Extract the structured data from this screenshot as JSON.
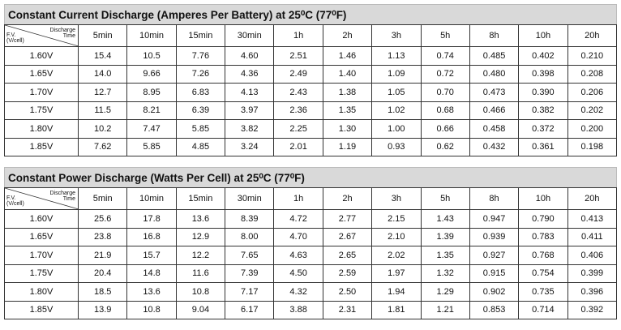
{
  "tables": [
    {
      "title": "Constant Current Discharge (Amperes Per Battery) at 25⁰C (77⁰F)",
      "corner": {
        "fv": [
          "F.V.",
          "(V/cell)"
        ],
        "time": [
          "Discharge",
          "Time"
        ]
      },
      "columns": [
        "5min",
        "10min",
        "15min",
        "30min",
        "1h",
        "2h",
        "3h",
        "5h",
        "8h",
        "10h",
        "20h"
      ],
      "rows": [
        {
          "label": "1.60V",
          "cells": [
            "15.4",
            "10.5",
            "7.76",
            "4.60",
            "2.51",
            "1.46",
            "1.13",
            "0.74",
            "0.485",
            "0.402",
            "0.210"
          ]
        },
        {
          "label": "1.65V",
          "cells": [
            "14.0",
            "9.66",
            "7.26",
            "4.36",
            "2.49",
            "1.40",
            "1.09",
            "0.72",
            "0.480",
            "0.398",
            "0.208"
          ]
        },
        {
          "label": "1.70V",
          "cells": [
            "12.7",
            "8.95",
            "6.83",
            "4.13",
            "2.43",
            "1.38",
            "1.05",
            "0.70",
            "0.473",
            "0.390",
            "0.206"
          ]
        },
        {
          "label": "1.75V",
          "cells": [
            "11.5",
            "8.21",
            "6.39",
            "3.97",
            "2.36",
            "1.35",
            "1.02",
            "0.68",
            "0.466",
            "0.382",
            "0.202"
          ]
        },
        {
          "label": "1.80V",
          "cells": [
            "10.2",
            "7.47",
            "5.85",
            "3.82",
            "2.25",
            "1.30",
            "1.00",
            "0.66",
            "0.458",
            "0.372",
            "0.200"
          ]
        },
        {
          "label": "1.85V",
          "cells": [
            "7.62",
            "5.85",
            "4.85",
            "3.24",
            "2.01",
            "1.19",
            "0.93",
            "0.62",
            "0.432",
            "0.361",
            "0.198"
          ]
        }
      ]
    },
    {
      "title": "Constant Power Discharge (Watts Per Cell) at 25⁰C (77⁰F)",
      "corner": {
        "fv": [
          "F.V.",
          "(V/cell)"
        ],
        "time": [
          "Discharge",
          "Time"
        ]
      },
      "columns": [
        "5min",
        "10min",
        "15min",
        "30min",
        "1h",
        "2h",
        "3h",
        "5h",
        "8h",
        "10h",
        "20h"
      ],
      "rows": [
        {
          "label": "1.60V",
          "cells": [
            "25.6",
            "17.8",
            "13.6",
            "8.39",
            "4.72",
            "2.77",
            "2.15",
            "1.43",
            "0.947",
            "0.790",
            "0.413"
          ]
        },
        {
          "label": "1.65V",
          "cells": [
            "23.8",
            "16.8",
            "12.9",
            "8.00",
            "4.70",
            "2.67",
            "2.10",
            "1.39",
            "0.939",
            "0.783",
            "0.411"
          ]
        },
        {
          "label": "1.70V",
          "cells": [
            "21.9",
            "15.7",
            "12.2",
            "7.65",
            "4.63",
            "2.65",
            "2.02",
            "1.35",
            "0.927",
            "0.768",
            "0.406"
          ]
        },
        {
          "label": "1.75V",
          "cells": [
            "20.4",
            "14.8",
            "11.6",
            "7.39",
            "4.50",
            "2.59",
            "1.97",
            "1.32",
            "0.915",
            "0.754",
            "0.399"
          ]
        },
        {
          "label": "1.80V",
          "cells": [
            "18.5",
            "13.6",
            "10.8",
            "7.17",
            "4.32",
            "2.50",
            "1.94",
            "1.29",
            "0.902",
            "0.735",
            "0.396"
          ]
        },
        {
          "label": "1.85V",
          "cells": [
            "13.9",
            "10.8",
            "9.04",
            "6.17",
            "3.88",
            "2.31",
            "1.81",
            "1.21",
            "0.853",
            "0.714",
            "0.392"
          ]
        }
      ]
    }
  ]
}
